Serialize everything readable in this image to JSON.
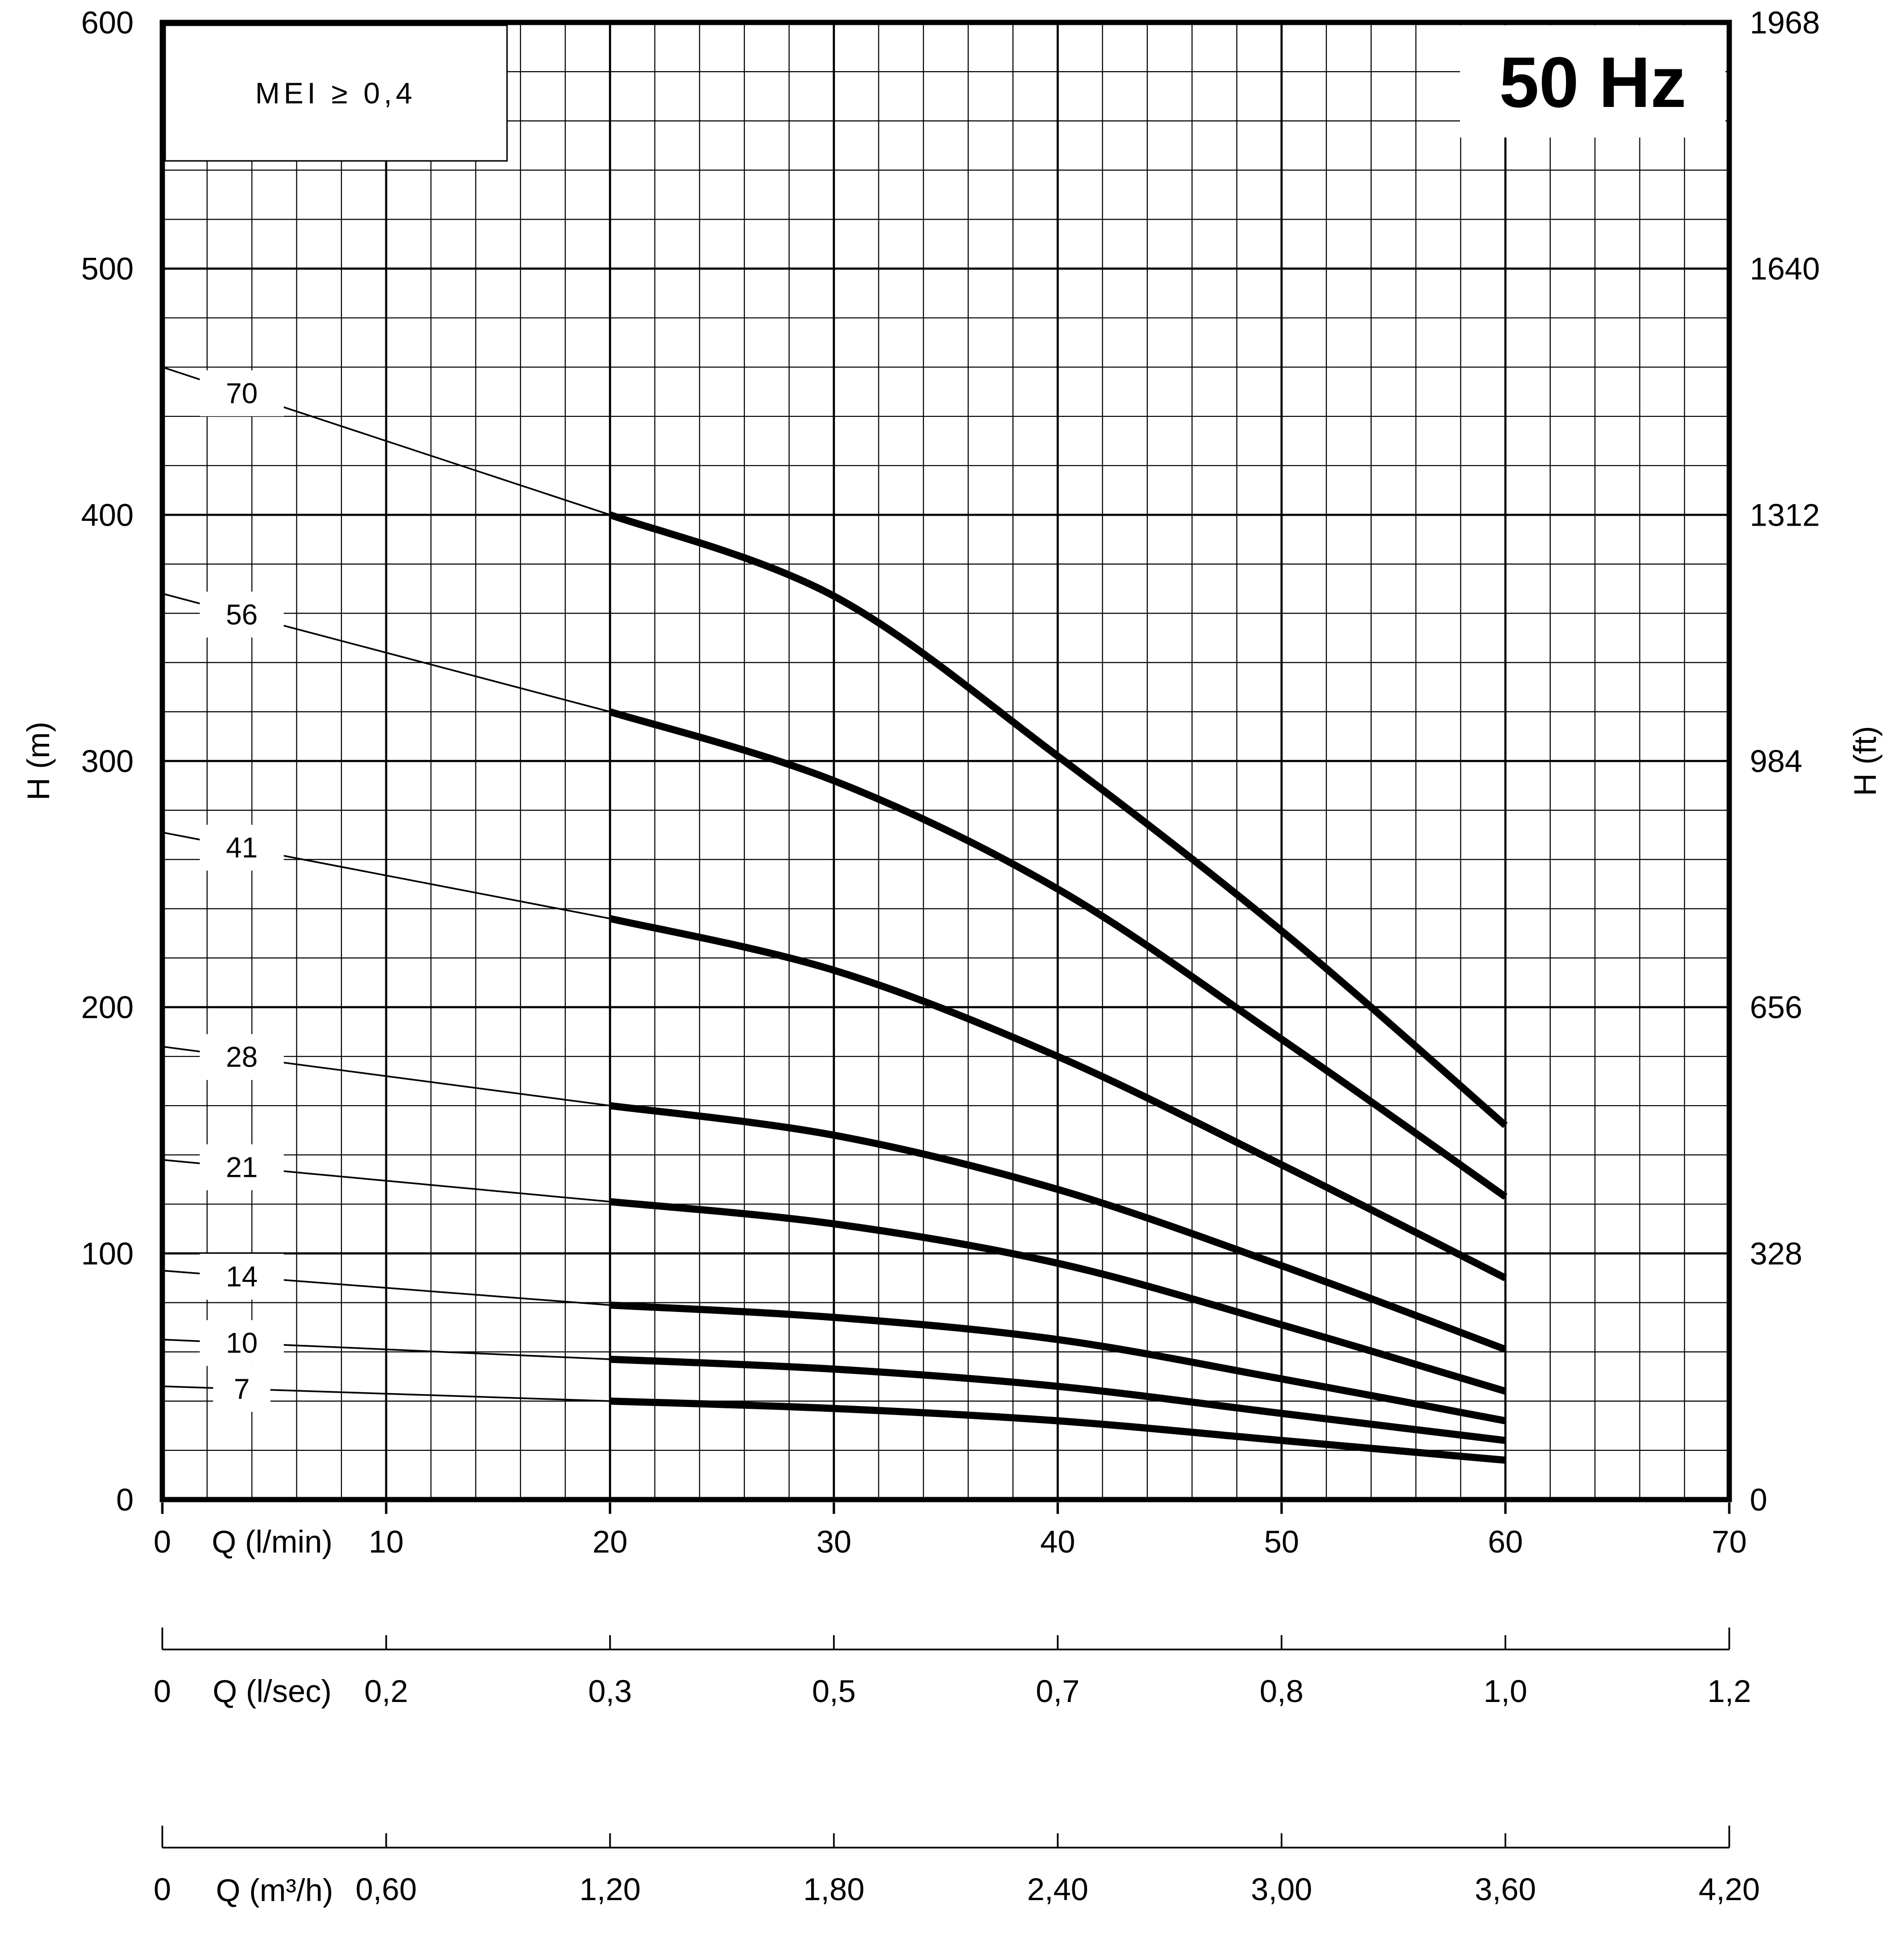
{
  "chart_data": {
    "type": "line",
    "title": "50 Hz",
    "badge": "MEI ≥ 0,4",
    "x_axis": {
      "label": "Q (l/min)",
      "range": [
        0,
        70
      ],
      "ticks": [
        0,
        10,
        20,
        30,
        40,
        50,
        60,
        70
      ]
    },
    "y_axis_left": {
      "label": "H (m)",
      "range": [
        0,
        600
      ],
      "ticks": [
        0,
        100,
        200,
        300,
        400,
        500,
        600
      ]
    },
    "y_axis_right": {
      "label": "H (ft)",
      "ticks": [
        0,
        328,
        656,
        984,
        1312,
        1640,
        1968
      ]
    },
    "secondary_axes": [
      {
        "label": "Q (l/sec)",
        "tick_labels": [
          "0",
          "0,2",
          "0,3",
          "0,5",
          "0,7",
          "0,8",
          "1,0",
          "1,2"
        ]
      },
      {
        "label": "Q (m³/h)",
        "tick_labels": [
          "0",
          "0,60",
          "1,20",
          "1,80",
          "2,40",
          "3,00",
          "3,60",
          "4,20"
        ]
      }
    ],
    "grid": {
      "x_minor_step": 2,
      "x_major_step": 10,
      "y_minor_step": 20,
      "y_major_step": 100
    },
    "legend_position": "on-curve-labels",
    "thin_q": [
      0,
      20
    ],
    "thick_q": [
      20,
      30,
      40,
      50,
      60
    ],
    "label_q": 3.55,
    "series": [
      {
        "label": "70",
        "h_q0": 460,
        "h_thick": [
          400,
          367,
          302,
          231,
          152
        ]
      },
      {
        "label": "56",
        "h_q0": 368,
        "h_thick": [
          320,
          292,
          248,
          187,
          123
        ]
      },
      {
        "label": "41",
        "h_q0": 271,
        "h_thick": [
          236,
          215,
          180,
          136,
          90
        ]
      },
      {
        "label": "28",
        "h_q0": 184,
        "h_thick": [
          160,
          148,
          126,
          95,
          61
        ]
      },
      {
        "label": "21",
        "h_q0": 138,
        "h_thick": [
          121,
          112,
          96,
          71,
          44
        ]
      },
      {
        "label": "14",
        "h_q0": 93,
        "h_thick": [
          79,
          74,
          65,
          49,
          32
        ]
      },
      {
        "label": "10",
        "h_q0": 65,
        "h_thick": [
          57,
          53,
          46,
          35,
          24
        ]
      },
      {
        "label": "7",
        "h_q0": 46,
        "h_thick": [
          40,
          37,
          32,
          24,
          16
        ]
      }
    ]
  }
}
